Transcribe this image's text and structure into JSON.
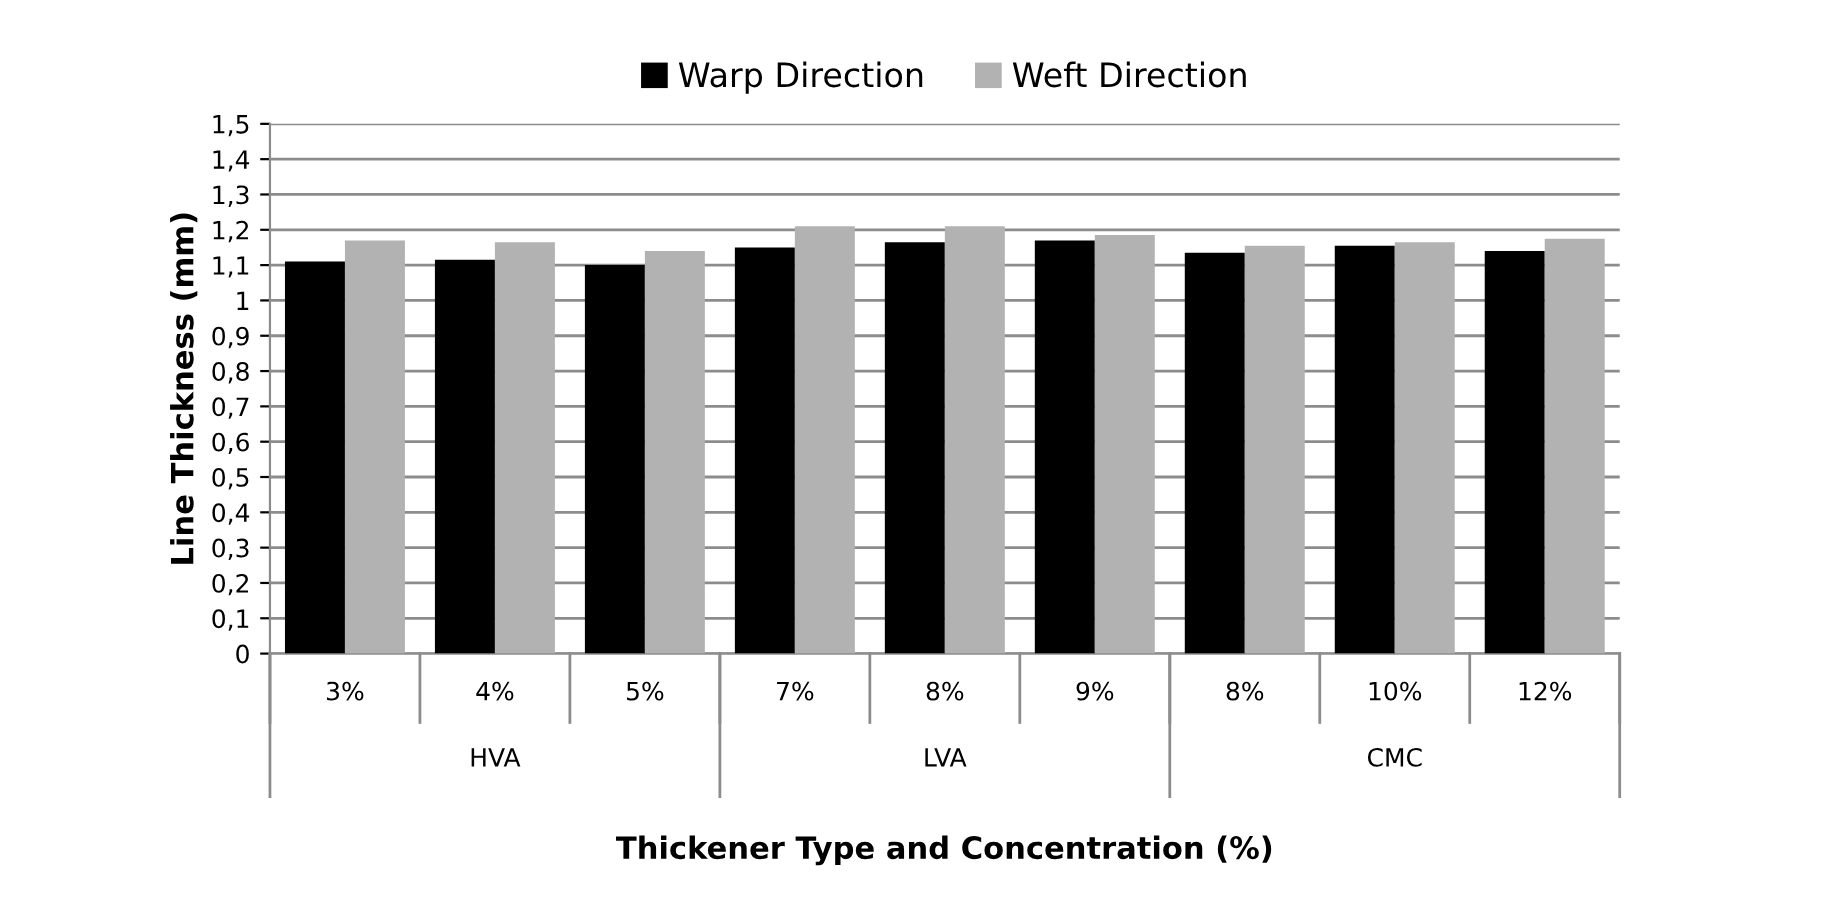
{
  "chart_data": {
    "type": "bar",
    "xlabel": "Thickener Type and Concentration (%)",
    "ylabel": "Line Thickness (mm)",
    "categories": [
      "3%",
      "4%",
      "5%",
      "7%",
      "8%",
      "9%",
      "8%",
      "10%",
      "12%"
    ],
    "series": [
      {
        "name": "Warp Direction",
        "color": "#000000",
        "values": [
          1.11,
          1.115,
          1.1,
          1.15,
          1.165,
          1.17,
          1.135,
          1.155,
          1.14
        ]
      },
      {
        "name": "Weft Direction",
        "color": "#b2b2b2",
        "values": [
          1.17,
          1.165,
          1.14,
          1.21,
          1.21,
          1.185,
          1.155,
          1.165,
          1.175
        ]
      }
    ],
    "annotations": [
      "HVA",
      "LVA",
      "CMC"
    ],
    "ylim": [
      0,
      1.5
    ],
    "yticks": [
      0,
      {
        "value": 0.1,
        "label": "0,1"
      },
      {
        "value": 0.2,
        "label": "0,2"
      },
      {
        "value": 0.3,
        "label": "0,3"
      },
      {
        "value": 0.4,
        "label": "0,4"
      },
      {
        "value": 0.5,
        "label": "0,5"
      },
      {
        "value": 0.6,
        "label": "0,6"
      },
      {
        "value": 0.7,
        "label": "0,7"
      },
      {
        "value": 0.8,
        "label": "0,8"
      },
      {
        "value": 0.9,
        "label": "0,9"
      },
      1,
      {
        "value": 1.1,
        "label": "1,1"
      },
      {
        "value": 1.2,
        "label": "1,2"
      },
      {
        "value": 1.3,
        "label": "1,3"
      },
      {
        "value": 1.4,
        "label": "1,4"
      },
      {
        "value": 1.5,
        "label": "1,5"
      }
    ],
    "grid": "y",
    "legend": "top"
  }
}
